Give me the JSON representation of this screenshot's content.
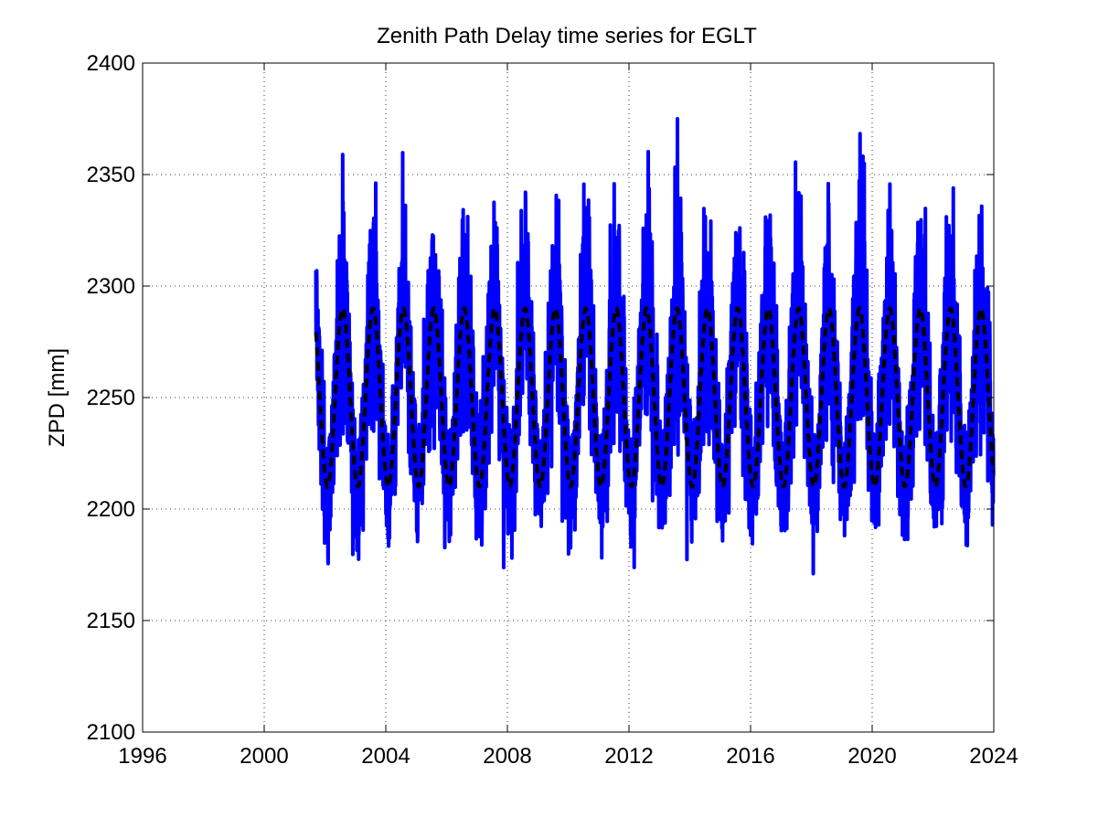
{
  "chart_data": {
    "type": "line",
    "title": "Zenith Path Delay time series for EGLT",
    "xlabel": "",
    "ylabel": "ZPD [mm]",
    "xlim": [
      1996,
      2024
    ],
    "ylim": [
      2100,
      2400
    ],
    "xticks": [
      "1996",
      "2000",
      "2004",
      "2008",
      "2012",
      "2016",
      "2020",
      "2024"
    ],
    "yticks": [
      "2100",
      "2150",
      "2200",
      "2250",
      "2300",
      "2350",
      "2400"
    ],
    "grid": true,
    "series": [
      {
        "name": "",
        "color": "#0000ff",
        "style": "solid",
        "x_start": 2001.7,
        "x_end": 2023.99,
        "mean": 2250,
        "seasonal_amplitude": 40,
        "noise_amplitude": 45,
        "y_min": 2147,
        "y_max": 2375
      },
      {
        "name": "",
        "color": "#000000",
        "style": "dashed",
        "x_start": 2001.7,
        "x_end": 2023.99,
        "mean": 2250,
        "seasonal_amplitude": 40,
        "y_min": 2210,
        "y_max": 2290
      }
    ]
  }
}
